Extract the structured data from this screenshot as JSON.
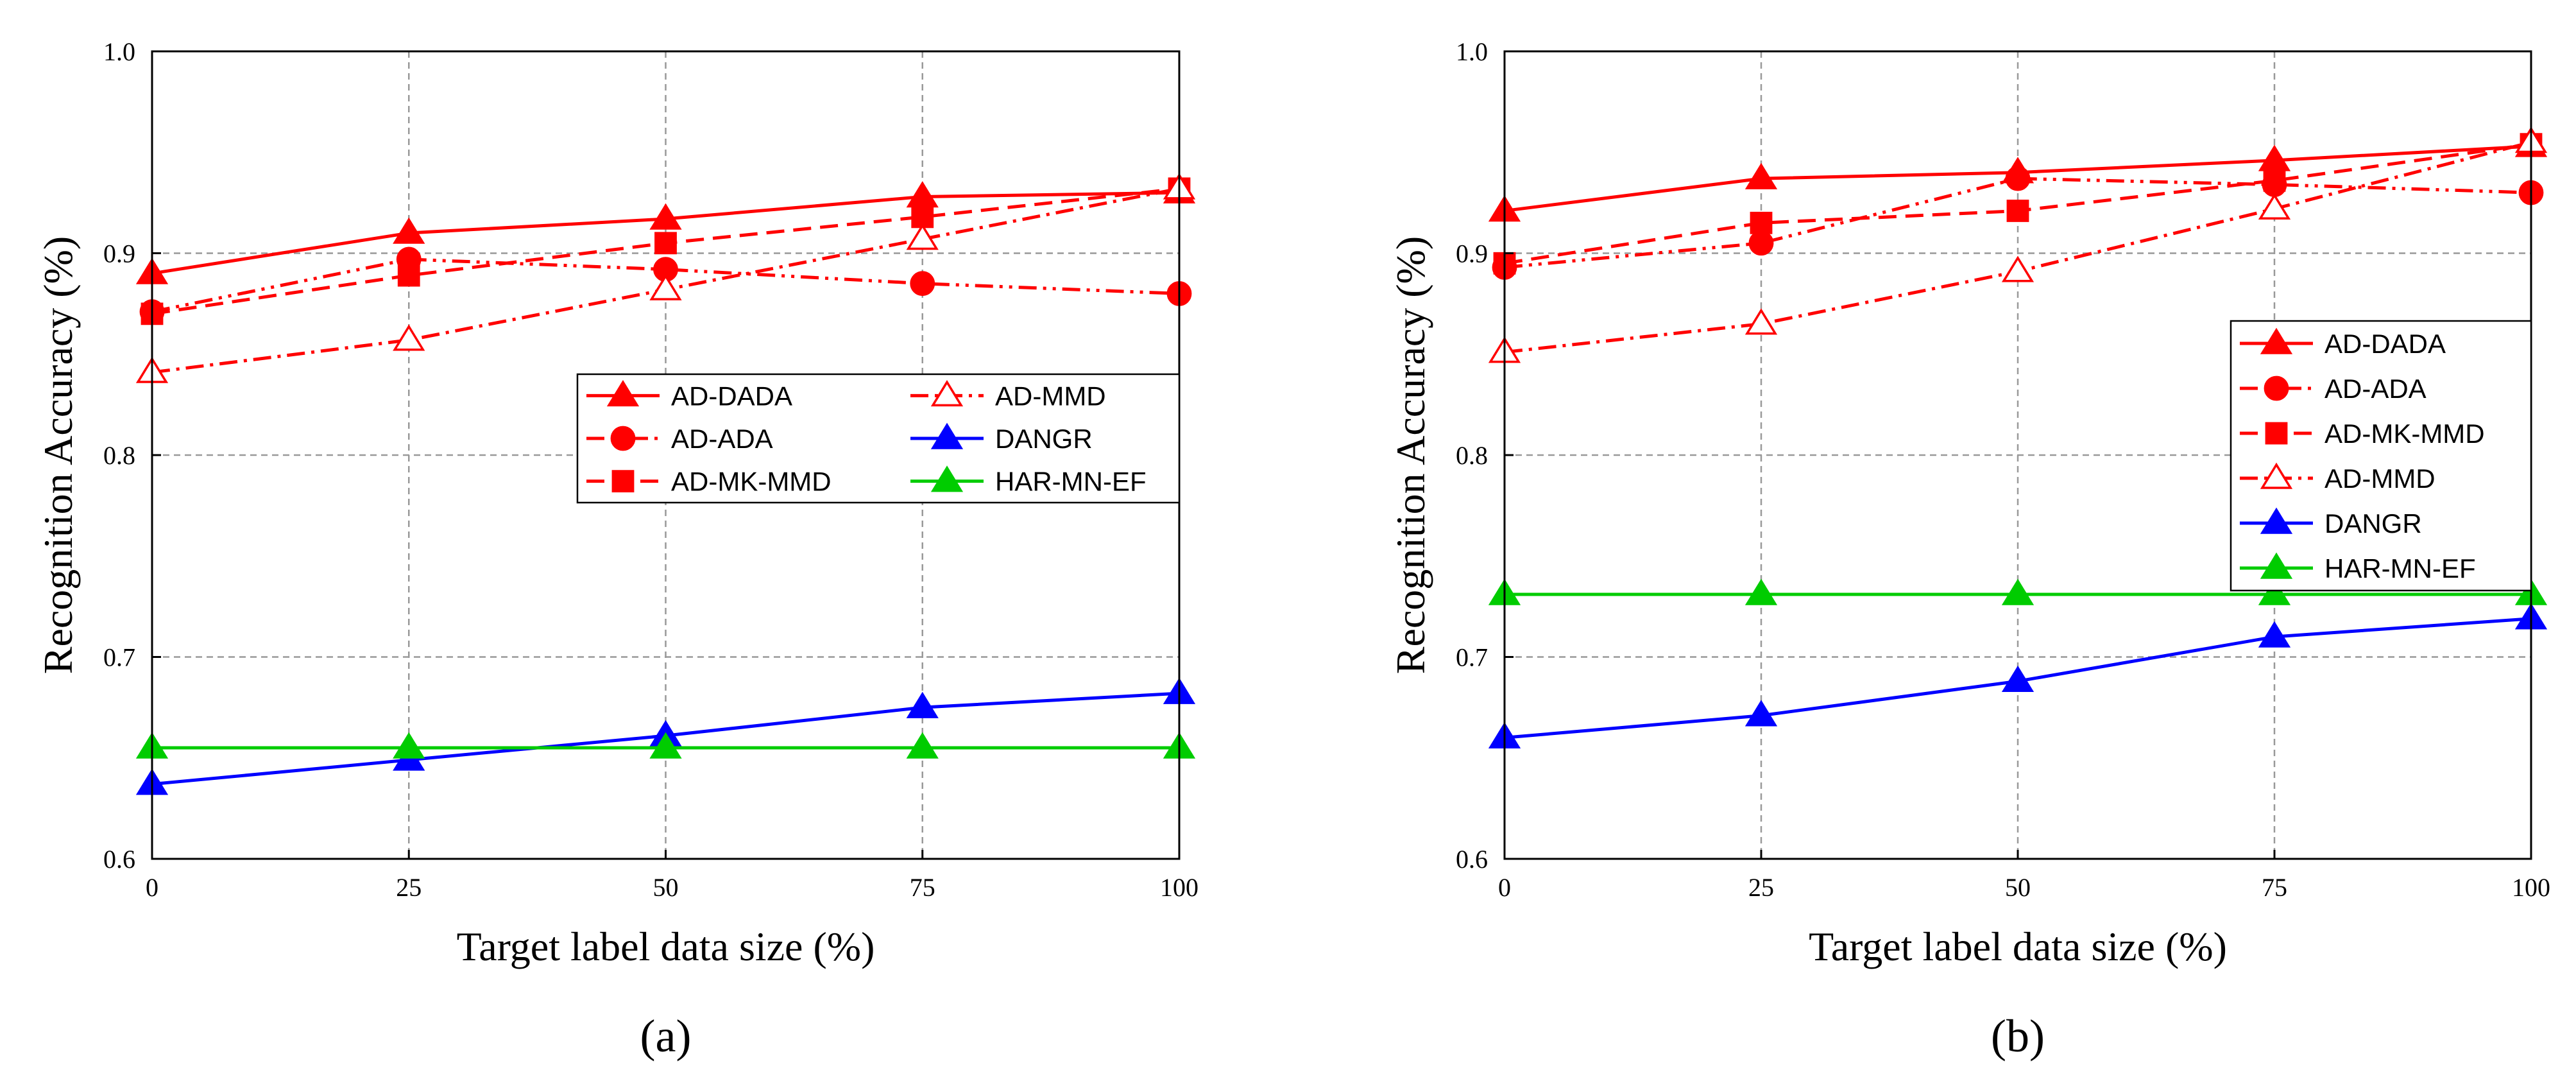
{
  "chart_data": [
    {
      "type": "line",
      "panel_label": "(a)",
      "xlabel": "Target label data size (%)",
      "ylabel": "Recognition Accuracy (%)",
      "x": [
        0,
        25,
        50,
        75,
        100
      ],
      "x_ticks": [
        "0",
        "25",
        "50",
        "75",
        "100"
      ],
      "y_ticks": [
        "0.6",
        "0.7",
        "0.8",
        "0.9",
        "1.0"
      ],
      "xlim": [
        0,
        100
      ],
      "ylim": [
        0.6,
        1.0
      ],
      "grid": true,
      "legend_columns": 2,
      "legend_position": "center-right",
      "series": [
        {
          "name": "AD-DADA",
          "color": "#ff0000",
          "marker": "triangle-filled",
          "dash": "solid",
          "values": [
            0.89,
            0.91,
            0.917,
            0.928,
            0.93
          ]
        },
        {
          "name": "AD-ADA",
          "color": "#ff0000",
          "marker": "circle-filled",
          "dash": "dashdotdot",
          "values": [
            0.871,
            0.897,
            0.892,
            0.885,
            0.88
          ]
        },
        {
          "name": "AD-MK-MMD",
          "color": "#ff0000",
          "marker": "square-filled",
          "dash": "dashed",
          "values": [
            0.87,
            0.889,
            0.905,
            0.918,
            0.932
          ]
        },
        {
          "name": "AD-MMD",
          "color": "#ff0000",
          "marker": "triangle-open",
          "dash": "dashdot",
          "values": [
            0.841,
            0.857,
            0.882,
            0.907,
            0.932
          ]
        },
        {
          "name": "DANGR",
          "color": "#0000ff",
          "marker": "triangle-filled",
          "dash": "solid",
          "values": [
            0.637,
            0.649,
            0.661,
            0.675,
            0.682
          ]
        },
        {
          "name": "HAR-MN-EF",
          "color": "#00cc00",
          "marker": "triangle-filled",
          "dash": "solid",
          "values": [
            0.655,
            0.655,
            0.655,
            0.655,
            0.655
          ]
        }
      ]
    },
    {
      "type": "line",
      "panel_label": "(b)",
      "xlabel": "Target label data size (%)",
      "ylabel": "Recognition Accuracy (%)",
      "x": [
        0,
        25,
        50,
        75,
        100
      ],
      "x_ticks": [
        "0",
        "25",
        "50",
        "75",
        "100"
      ],
      "y_ticks": [
        "0.6",
        "0.7",
        "0.8",
        "0.9",
        "1.0"
      ],
      "xlim": [
        0,
        100
      ],
      "ylim": [
        0.6,
        1.0
      ],
      "grid": true,
      "legend_columns": 1,
      "legend_position": "right",
      "series": [
        {
          "name": "AD-DADA",
          "color": "#ff0000",
          "marker": "triangle-filled",
          "dash": "solid",
          "values": [
            0.921,
            0.937,
            0.94,
            0.946,
            0.953
          ]
        },
        {
          "name": "AD-ADA",
          "color": "#ff0000",
          "marker": "circle-filled",
          "dash": "dashdotdot",
          "values": [
            0.893,
            0.905,
            0.937,
            0.934,
            0.93
          ]
        },
        {
          "name": "AD-MK-MMD",
          "color": "#ff0000",
          "marker": "square-filled",
          "dash": "dashed",
          "values": [
            0.895,
            0.915,
            0.921,
            0.936,
            0.954
          ]
        },
        {
          "name": "AD-MMD",
          "color": "#ff0000",
          "marker": "triangle-open",
          "dash": "dashdot",
          "values": [
            0.851,
            0.865,
            0.891,
            0.922,
            0.955
          ]
        },
        {
          "name": "DANGR",
          "color": "#0000ff",
          "marker": "triangle-filled",
          "dash": "solid",
          "values": [
            0.66,
            0.671,
            0.688,
            0.71,
            0.719
          ]
        },
        {
          "name": "HAR-MN-EF",
          "color": "#00cc00",
          "marker": "triangle-filled",
          "dash": "solid",
          "values": [
            0.731,
            0.731,
            0.731,
            0.731,
            0.731
          ]
        }
      ]
    }
  ]
}
